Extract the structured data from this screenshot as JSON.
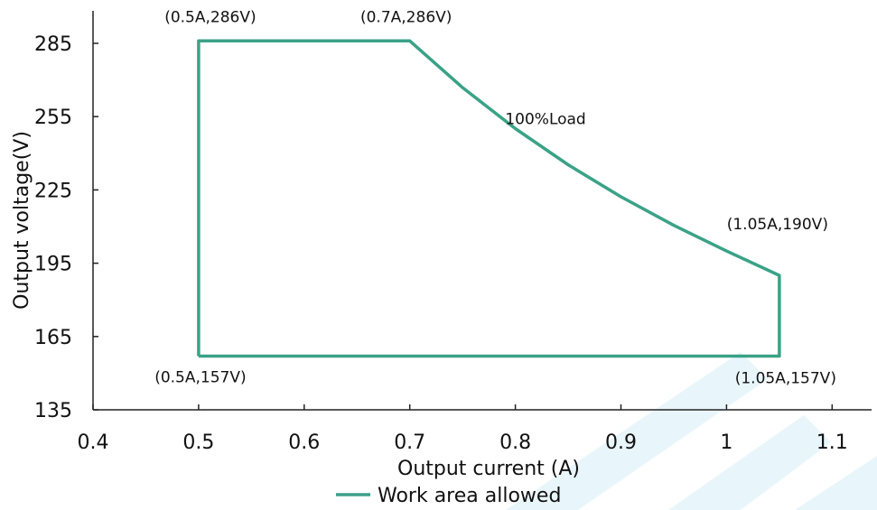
{
  "chart_data": {
    "type": "line",
    "xlabel": "Output current (A)",
    "ylabel": "Output voltage(V)",
    "xlim": [
      0.4,
      1.15
    ],
    "ylim": [
      135,
      295
    ],
    "x_ticks": [
      0.4,
      0.5,
      0.6,
      0.7,
      0.8,
      0.9,
      1,
      1.1
    ],
    "x_tick_labels": [
      "0.4",
      "0.5",
      "0.6",
      "0.7",
      "0.8",
      "0.9",
      "1",
      "1.1"
    ],
    "y_ticks": [
      135,
      165,
      195,
      225,
      255,
      285
    ],
    "y_tick_labels": [
      "135",
      "165",
      "195",
      "225",
      "255",
      "285"
    ],
    "grid": false,
    "legend_position": "bottom",
    "series": [
      {
        "name": "Work area allowed",
        "color": "#3aa287",
        "points": [
          {
            "x": 0.5,
            "y": 157
          },
          {
            "x": 0.5,
            "y": 286
          },
          {
            "x": 0.7,
            "y": 286
          },
          {
            "x": 0.75,
            "y": 266.9
          },
          {
            "x": 0.8,
            "y": 250.1
          },
          {
            "x": 0.85,
            "y": 235.3
          },
          {
            "x": 0.9,
            "y": 222.2
          },
          {
            "x": 0.95,
            "y": 210.5
          },
          {
            "x": 1.0,
            "y": 200.0
          },
          {
            "x": 1.05,
            "y": 190
          },
          {
            "x": 1.05,
            "y": 157
          },
          {
            "x": 0.5,
            "y": 157
          }
        ]
      }
    ],
    "annotations": [
      {
        "text": "(0.5A,286V)",
        "x": 0.5,
        "y": 286
      },
      {
        "text": "(0.7A,286V)",
        "x": 0.7,
        "y": 286
      },
      {
        "text": "100%Load",
        "x": 0.85,
        "y": 235
      },
      {
        "text": "(1.05A,190V)",
        "x": 1.05,
        "y": 190
      },
      {
        "text": "(0.5A,157V)",
        "x": 0.5,
        "y": 157
      },
      {
        "text": "(1.05A,157V)",
        "x": 1.05,
        "y": 157
      }
    ]
  },
  "watermark_color": "#e8f6fb"
}
